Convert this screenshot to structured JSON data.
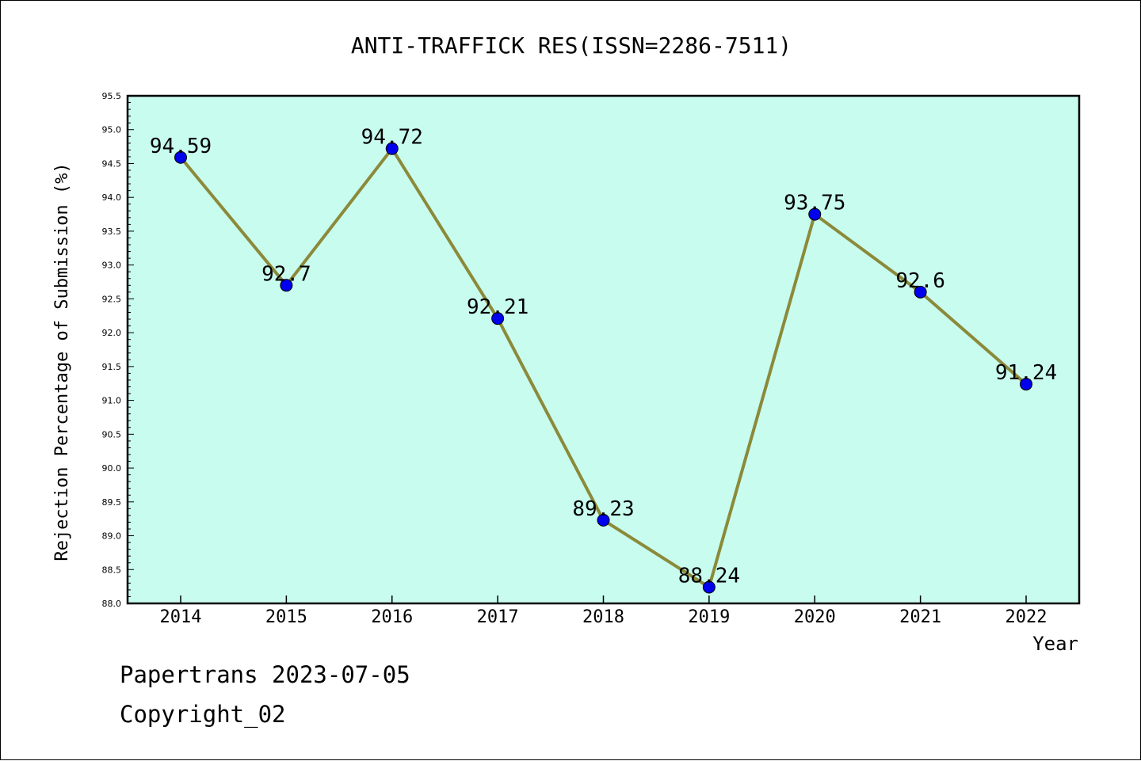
{
  "chart_data": {
    "type": "line",
    "title": "ANTI-TRAFFICK RES(ISSN=2286-7511)",
    "xlabel": "Year",
    "ylabel": "Rejection Percentage of Submission (%)",
    "categories": [
      "2014",
      "2015",
      "2016",
      "2017",
      "2018",
      "2019",
      "2020",
      "2021",
      "2022"
    ],
    "series": [
      {
        "values": [
          94.59,
          92.7,
          94.72,
          92.21,
          89.23,
          88.24,
          93.75,
          92.6,
          91.24
        ],
        "labels": [
          "94.59",
          "92.7",
          "94.72",
          "92.21",
          "89.23",
          "88.24",
          "93.75",
          "92.6",
          "91.24"
        ]
      }
    ],
    "ylim": [
      88.0,
      95.5
    ],
    "yticks": [
      "88.0",
      "88.5",
      "89.0",
      "89.5",
      "90.0",
      "90.5",
      "91.0",
      "91.5",
      "92.0",
      "92.5",
      "93.0",
      "93.5",
      "94.0",
      "94.5",
      "95.0",
      "95.5"
    ],
    "grid": false,
    "colors": {
      "plot_background": "#c8fcee",
      "line": "#8b8a3a",
      "marker": "#0000ee"
    }
  },
  "footer": {
    "source": "Papertrans 2023-07-05",
    "copyright": "Copyright_02"
  }
}
